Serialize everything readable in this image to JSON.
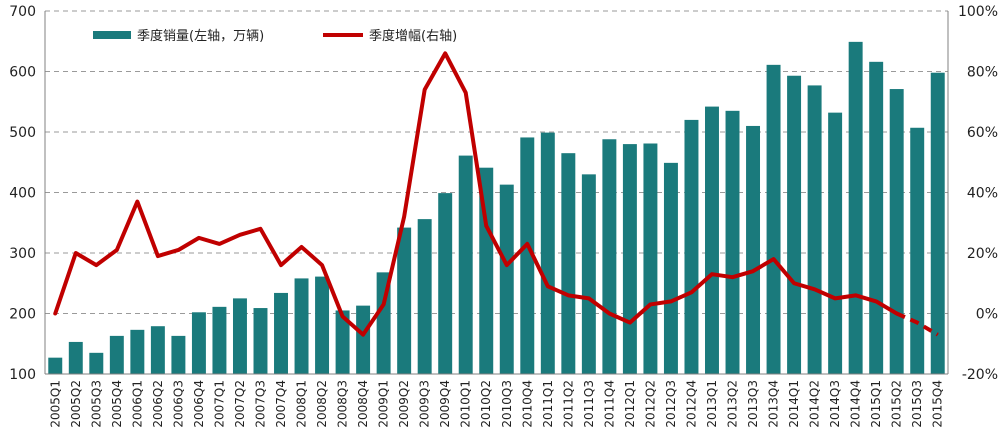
{
  "chart_data": {
    "type": "bar+line",
    "categories": [
      "2005Q1",
      "2005Q2",
      "2005Q3",
      "2005Q4",
      "2006Q1",
      "2006Q2",
      "2006Q3",
      "2006Q4",
      "2007Q1",
      "2007Q2",
      "2007Q3",
      "2007Q4",
      "2008Q1",
      "2008Q2",
      "2008Q3",
      "2008Q4",
      "2009Q1",
      "2009Q2",
      "2009Q3",
      "2009Q4",
      "2010Q1",
      "2010Q2",
      "2010Q3",
      "2010Q4",
      "2011Q1",
      "2011Q2",
      "2011Q3",
      "2011Q4",
      "2012Q1",
      "2012Q2",
      "2012Q3",
      "2012Q4",
      "2013Q1",
      "2013Q2",
      "2013Q3",
      "2013Q4",
      "2014Q1",
      "2014Q2",
      "2014Q3",
      "2014Q4",
      "2015Q1",
      "2015Q2",
      "2015Q3",
      "2015Q4"
    ],
    "series": [
      {
        "name": "季度销量(左轴，万辆)",
        "type": "bar",
        "axis": "left",
        "color": "#1a7a7c",
        "values": [
          127,
          153,
          135,
          163,
          173,
          179,
          163,
          202,
          211,
          225,
          209,
          234,
          258,
          261,
          205,
          213,
          268,
          342,
          356,
          399,
          461,
          441,
          413,
          491,
          499,
          465,
          430,
          488,
          480,
          481,
          449,
          520,
          542,
          535,
          510,
          611,
          593,
          577,
          532,
          649,
          616,
          571,
          507,
          598
        ]
      },
      {
        "name": "季度增幅(右轴)",
        "type": "line",
        "axis": "right",
        "color": "#c00000",
        "values": [
          0,
          20,
          16,
          21,
          37,
          19,
          21,
          25,
          23,
          26,
          28,
          16,
          22,
          16,
          -1,
          -7,
          3,
          32,
          74,
          86,
          73,
          29,
          16,
          23,
          9,
          6,
          5,
          0,
          -3,
          3,
          4,
          7,
          13,
          12,
          14,
          18,
          10,
          8,
          5,
          6,
          4,
          0,
          -3,
          -7
        ],
        "dashed_from_index": 41
      }
    ],
    "y_left": {
      "ticks": [
        "100",
        "200",
        "300",
        "400",
        "500",
        "600",
        "700"
      ],
      "ylim": [
        100,
        700
      ]
    },
    "y_right": {
      "ticks": [
        "-20%",
        "0%",
        "20%",
        "40%",
        "60%",
        "80%",
        "100%"
      ],
      "ylim": [
        -20,
        100
      ]
    },
    "grid": "horizontal dashed",
    "legend_position": "top-left"
  }
}
